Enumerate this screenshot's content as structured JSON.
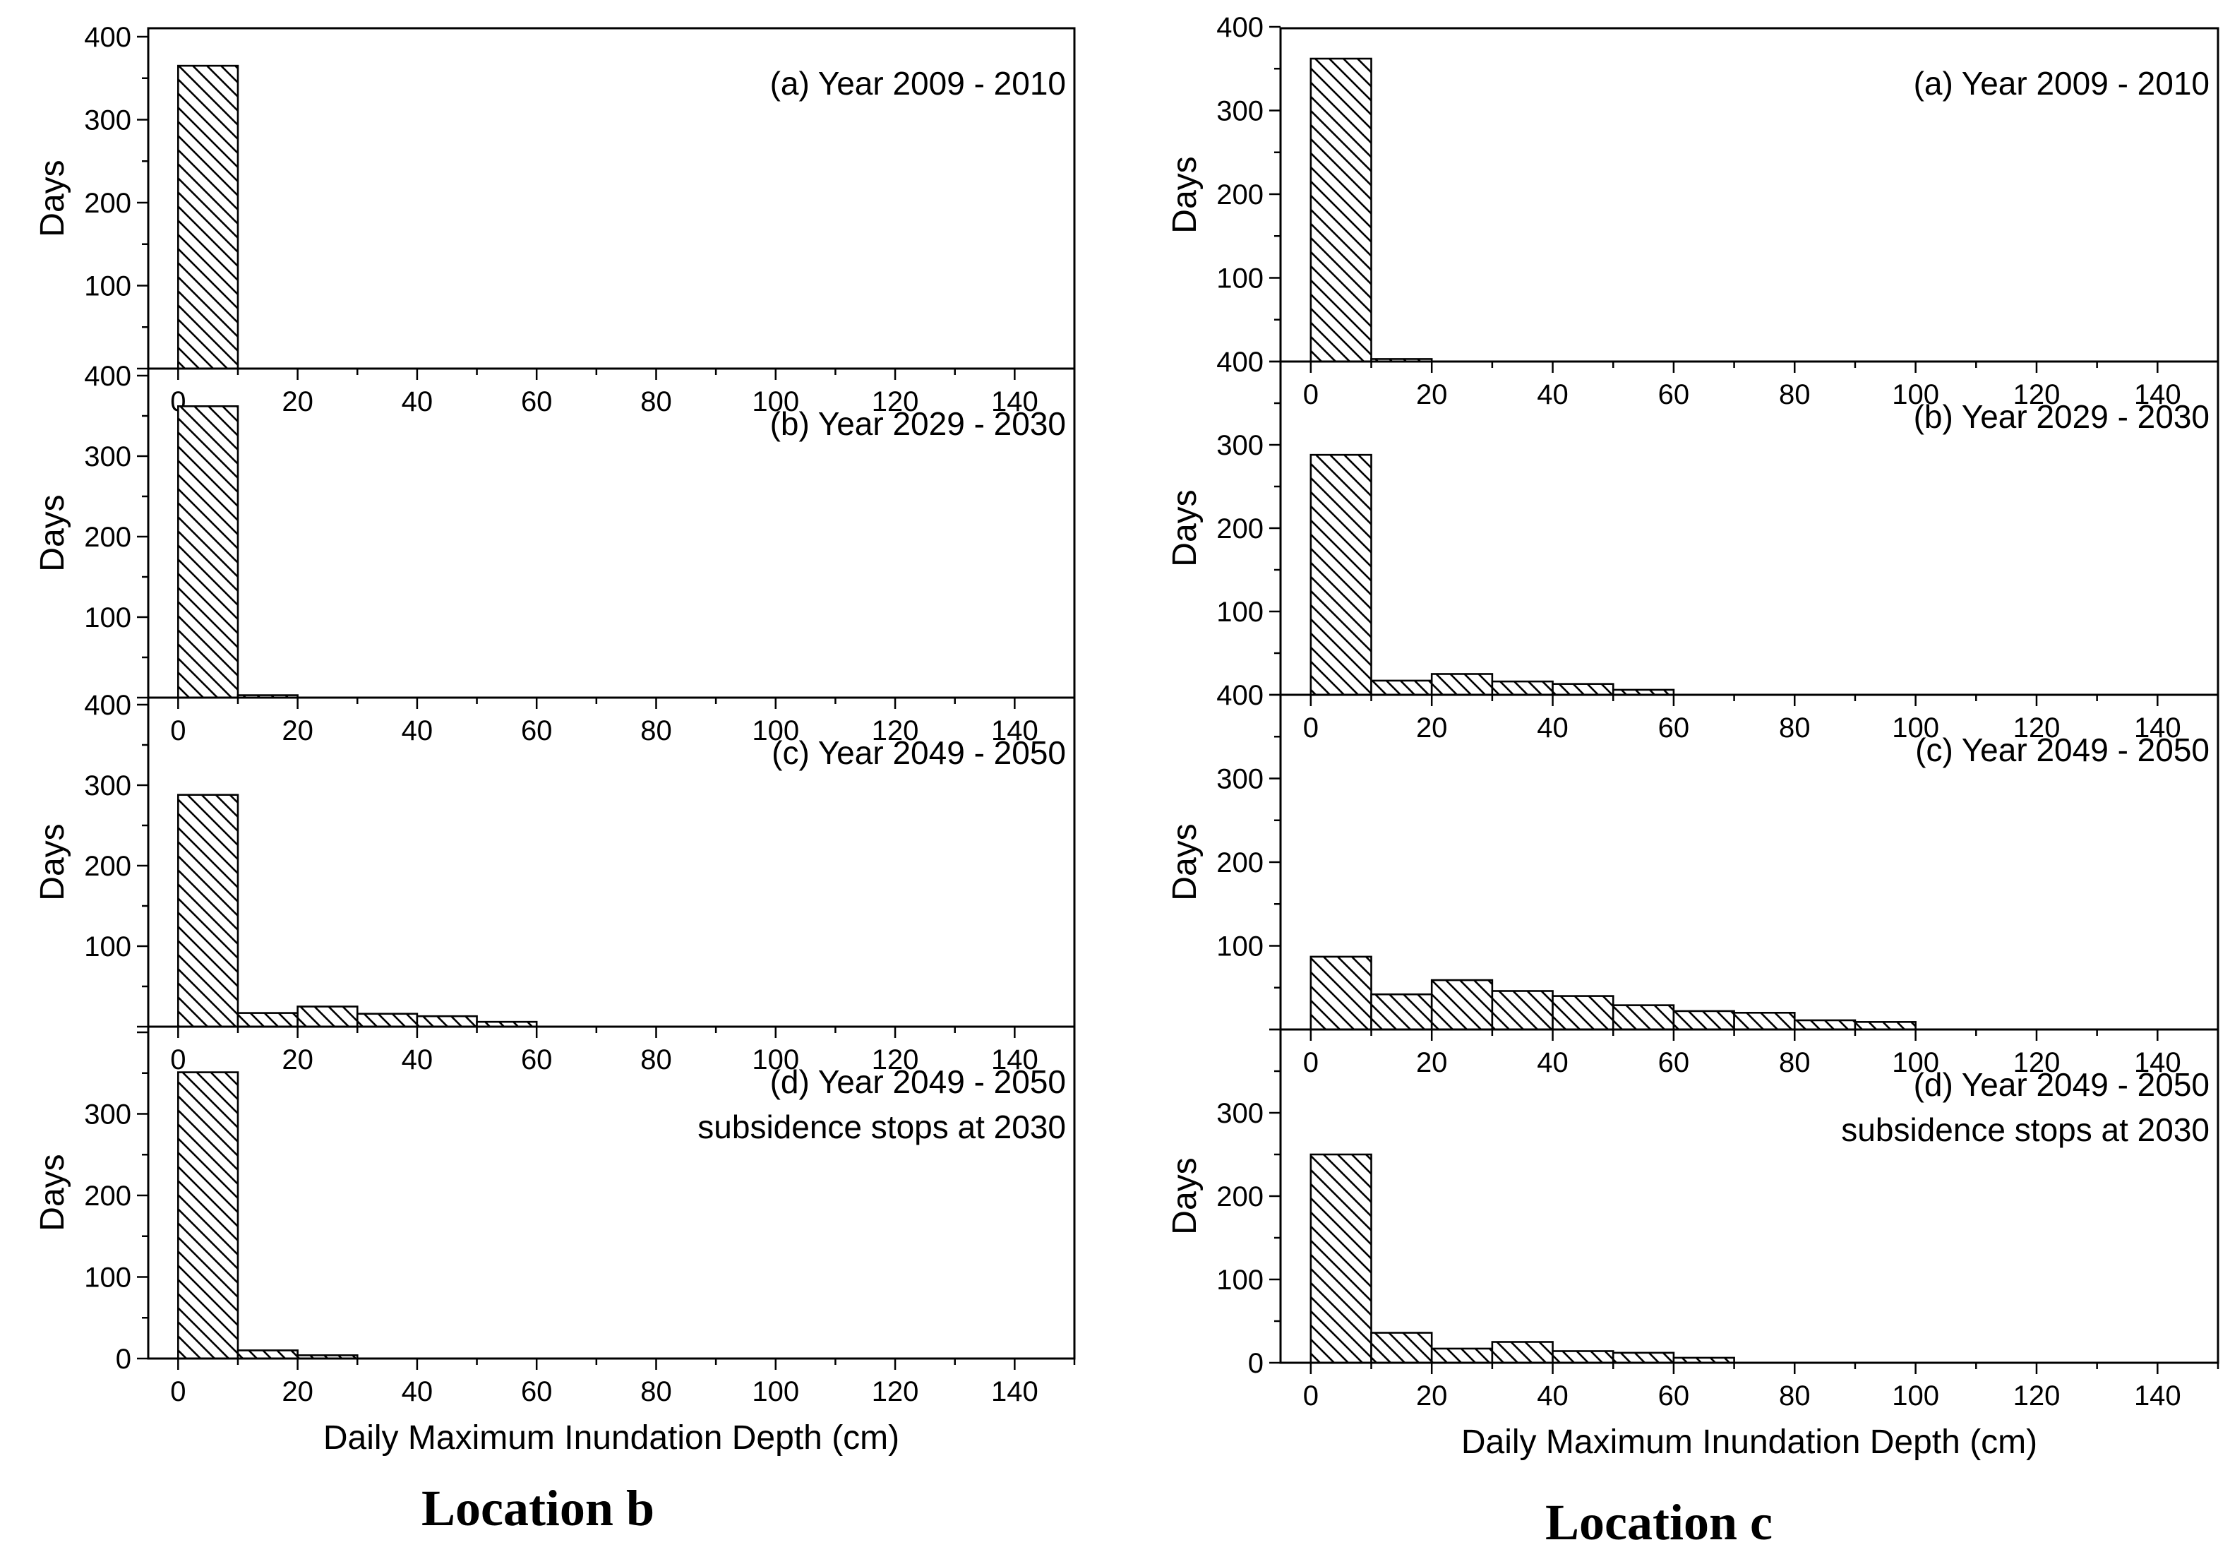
{
  "hatch_color": "#000000",
  "chart_data": [
    {
      "type": "bar",
      "group": "Location b",
      "title": "(a) Year 2009 - 2010",
      "xlabel": "",
      "ylabel": "Days",
      "xlim": [
        -5,
        150
      ],
      "ylim": [
        0,
        400
      ],
      "x_ticks": [
        0,
        20,
        40,
        60,
        80,
        100,
        120,
        140
      ],
      "y_ticks": [
        100,
        200,
        300,
        400
      ],
      "bin_width": 10,
      "bins": [
        0,
        10
      ],
      "values": [
        365,
        0
      ]
    },
    {
      "type": "bar",
      "group": "Location b",
      "title": "(b) Year 2029 - 2030",
      "xlabel": "",
      "ylabel": "Days",
      "xlim": [
        -5,
        150
      ],
      "ylim": [
        0,
        400
      ],
      "x_ticks": [
        0,
        20,
        40,
        60,
        80,
        100,
        120,
        140
      ],
      "y_ticks": [
        100,
        200,
        300,
        400
      ],
      "bin_width": 10,
      "bins": [
        0,
        10
      ],
      "values": [
        362,
        3
      ]
    },
    {
      "type": "bar",
      "group": "Location b",
      "title": "(c) Year 2049 - 2050",
      "xlabel": "",
      "ylabel": "Days",
      "xlim": [
        -5,
        150
      ],
      "ylim": [
        0,
        400
      ],
      "x_ticks": [
        0,
        20,
        40,
        60,
        80,
        100,
        120,
        140
      ],
      "y_ticks": [
        100,
        200,
        300,
        400
      ],
      "bin_width": 10,
      "bins": [
        0,
        10,
        20,
        30,
        40,
        50
      ],
      "values": [
        288,
        17,
        25,
        16,
        13,
        6
      ]
    },
    {
      "type": "bar",
      "group": "Location b",
      "title": "(d) Year 2049 - 2050",
      "subtitle": "subsidence stops at 2030",
      "xlabel": "Daily Maximum Inundation Depth (cm)",
      "ylabel": "Days",
      "xlim": [
        -5,
        150
      ],
      "ylim": [
        0,
        400
      ],
      "x_ticks": [
        0,
        20,
        40,
        60,
        80,
        100,
        120,
        140
      ],
      "y_ticks": [
        0,
        100,
        200,
        300
      ],
      "bin_width": 10,
      "bins": [
        0,
        10,
        20
      ],
      "values": [
        351,
        10,
        4
      ]
    },
    {
      "type": "bar",
      "group": "Location c",
      "title": "(a) Year 2009 - 2010",
      "xlabel": "",
      "ylabel": "Days",
      "xlim": [
        -5,
        150
      ],
      "ylim": [
        0,
        400
      ],
      "x_ticks": [
        0,
        20,
        40,
        60,
        80,
        100,
        120,
        140
      ],
      "y_ticks": [
        100,
        200,
        300,
        400
      ],
      "bin_width": 10,
      "bins": [
        0,
        10
      ],
      "values": [
        362,
        3
      ]
    },
    {
      "type": "bar",
      "group": "Location c",
      "title": "(b) Year 2029 - 2030",
      "xlabel": "",
      "ylabel": "Days",
      "xlim": [
        -5,
        150
      ],
      "ylim": [
        0,
        400
      ],
      "x_ticks": [
        0,
        20,
        40,
        60,
        80,
        100,
        120,
        140
      ],
      "y_ticks": [
        100,
        200,
        300,
        400
      ],
      "bin_width": 10,
      "bins": [
        0,
        10,
        20,
        30,
        40,
        50
      ],
      "values": [
        288,
        17,
        25,
        16,
        13,
        6
      ]
    },
    {
      "type": "bar",
      "group": "Location c",
      "title": "(c) Year 2049 - 2050",
      "xlabel": "",
      "ylabel": "Days",
      "xlim": [
        -5,
        150
      ],
      "ylim": [
        0,
        400
      ],
      "x_ticks": [
        0,
        20,
        40,
        60,
        80,
        100,
        120,
        140
      ],
      "y_ticks": [
        100,
        200,
        300,
        400
      ],
      "bin_width": 10,
      "bins": [
        0,
        10,
        20,
        30,
        40,
        50,
        60,
        70,
        80,
        90
      ],
      "values": [
        87,
        42,
        59,
        46,
        40,
        29,
        22,
        20,
        11,
        9
      ]
    },
    {
      "type": "bar",
      "group": "Location c",
      "title": "(d) Year 2049 - 2050",
      "subtitle": "subsidence stops at 2030",
      "xlabel": "Daily Maximum Inundation Depth (cm)",
      "ylabel": "Days",
      "xlim": [
        -5,
        150
      ],
      "ylim": [
        0,
        400
      ],
      "x_ticks": [
        0,
        20,
        40,
        60,
        80,
        100,
        120,
        140
      ],
      "y_ticks": [
        0,
        100,
        200,
        300
      ],
      "bin_width": 10,
      "bins": [
        0,
        10,
        20,
        30,
        40,
        50,
        60
      ],
      "values": [
        250,
        36,
        17,
        25,
        14,
        12,
        6
      ]
    }
  ],
  "location_labels": [
    "Location b",
    "Location c"
  ]
}
